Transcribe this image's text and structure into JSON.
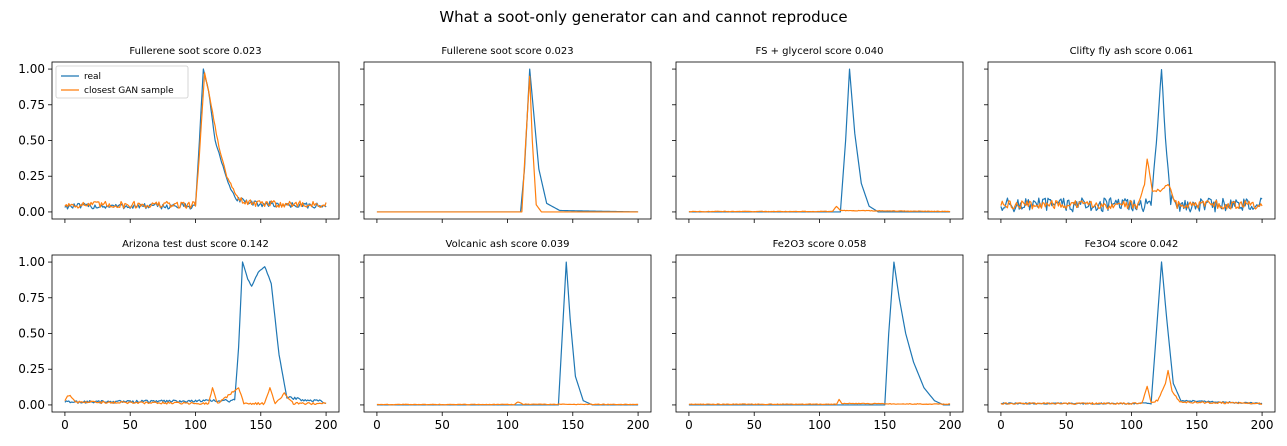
{
  "figure_title": "What a soot-only generator can and cannot reproduce",
  "legend": {
    "real": "real",
    "gan": "closest GAN sample"
  },
  "colors": {
    "real": "#1f77b4",
    "gan": "#ff7f0e"
  },
  "chart_data": [
    {
      "type": "line",
      "title": "Fullerene soot  score 0.023",
      "xlim": [
        0,
        200
      ],
      "ylim": [
        0,
        1
      ],
      "x_ticks": [
        0,
        50,
        100,
        150,
        200
      ],
      "y_ticks": [
        0.0,
        0.25,
        0.5,
        0.75,
        1.0
      ],
      "x_tick_labels_visible": false,
      "y_tick_labels_visible": true,
      "legend_visible": true,
      "series": [
        {
          "name": "real",
          "noise": 0.04,
          "floor": 0.04,
          "shape": [
            [
              0,
              0.04
            ],
            [
              100,
              0.04
            ],
            [
              103,
              0.5
            ],
            [
              106,
              1.0
            ],
            [
              110,
              0.85
            ],
            [
              115,
              0.5
            ],
            [
              120,
              0.35
            ],
            [
              125,
              0.2
            ],
            [
              130,
              0.1
            ],
            [
              140,
              0.06
            ],
            [
              200,
              0.04
            ]
          ]
        },
        {
          "name": "closest GAN sample",
          "noise": 0.05,
          "floor": 0.05,
          "shape": [
            [
              0,
              0.05
            ],
            [
              100,
              0.05
            ],
            [
              103,
              0.4
            ],
            [
              107,
              0.98
            ],
            [
              112,
              0.75
            ],
            [
              118,
              0.45
            ],
            [
              124,
              0.25
            ],
            [
              132,
              0.1
            ],
            [
              140,
              0.06
            ],
            [
              200,
              0.05
            ]
          ]
        }
      ]
    },
    {
      "type": "line",
      "title": "Fullerene soot  score 0.023",
      "xlim": [
        0,
        200
      ],
      "ylim": [
        0,
        1
      ],
      "x_ticks": [
        0,
        50,
        100,
        150,
        200
      ],
      "y_ticks": [
        0.0,
        0.25,
        0.5,
        0.75,
        1.0
      ],
      "x_tick_labels_visible": false,
      "y_tick_labels_visible": false,
      "legend_visible": false,
      "series": [
        {
          "name": "real",
          "noise": 0,
          "floor": 0.0,
          "shape": [
            [
              0,
              0
            ],
            [
              110,
              0
            ],
            [
              113,
              0.3
            ],
            [
              117,
              1.0
            ],
            [
              120,
              0.7
            ],
            [
              124,
              0.3
            ],
            [
              130,
              0.06
            ],
            [
              140,
              0.01
            ],
            [
              200,
              0
            ]
          ]
        },
        {
          "name": "closest GAN sample",
          "noise": 0,
          "floor": 0.0,
          "shape": [
            [
              0,
              0
            ],
            [
              111,
              0
            ],
            [
              114,
              0.5
            ],
            [
              117,
              0.95
            ],
            [
              119,
              0.5
            ],
            [
              122,
              0.05
            ],
            [
              126,
              0
            ],
            [
              200,
              0
            ]
          ]
        }
      ]
    },
    {
      "type": "line",
      "title": "FS + glycerol  score 0.040",
      "xlim": [
        0,
        200
      ],
      "ylim": [
        0,
        1
      ],
      "x_ticks": [
        0,
        50,
        100,
        150,
        200
      ],
      "y_ticks": [
        0.0,
        0.25,
        0.5,
        0.75,
        1.0
      ],
      "x_tick_labels_visible": false,
      "y_tick_labels_visible": false,
      "legend_visible": false,
      "series": [
        {
          "name": "real",
          "noise": 0,
          "floor": 0.0,
          "shape": [
            [
              0,
              0
            ],
            [
              116,
              0
            ],
            [
              120,
              0.5
            ],
            [
              123,
              1.0
            ],
            [
              127,
              0.55
            ],
            [
              132,
              0.2
            ],
            [
              138,
              0.04
            ],
            [
              145,
              0
            ],
            [
              200,
              0
            ]
          ]
        },
        {
          "name": "closest GAN sample",
          "noise": 0.004,
          "floor": 0.003,
          "shape": [
            [
              0,
              0.003
            ],
            [
              110,
              0.003
            ],
            [
              113,
              0.04
            ],
            [
              116,
              0.01
            ],
            [
              200,
              0.003
            ]
          ]
        }
      ]
    },
    {
      "type": "line",
      "title": "Clifty fly ash  score 0.061",
      "xlim": [
        0,
        200
      ],
      "ylim": [
        0,
        1
      ],
      "x_ticks": [
        0,
        50,
        100,
        150,
        200
      ],
      "y_ticks": [
        0.0,
        0.25,
        0.5,
        0.75,
        1.0
      ],
      "x_tick_labels_visible": false,
      "y_tick_labels_visible": false,
      "legend_visible": false,
      "series": [
        {
          "name": "real",
          "noise": 0.1,
          "floor": 0.05,
          "shape": [
            [
              0,
              0.05
            ],
            [
              115,
              0.05
            ],
            [
              120,
              0.6
            ],
            [
              123,
              1.0
            ],
            [
              126,
              0.5
            ],
            [
              130,
              0.1
            ],
            [
              135,
              0.05
            ],
            [
              200,
              0.05
            ]
          ]
        },
        {
          "name": "closest GAN sample",
          "noise": 0.06,
          "floor": 0.05,
          "shape": [
            [
              0,
              0.05
            ],
            [
              105,
              0.05
            ],
            [
              110,
              0.2
            ],
            [
              112,
              0.37
            ],
            [
              116,
              0.15
            ],
            [
              122,
              0.15
            ],
            [
              128,
              0.2
            ],
            [
              135,
              0.05
            ],
            [
              200,
              0.05
            ]
          ]
        }
      ]
    },
    {
      "type": "line",
      "title": "Arizona test dust  score 0.142",
      "xlim": [
        0,
        200
      ],
      "ylim": [
        0,
        1
      ],
      "x_ticks": [
        0,
        50,
        100,
        150,
        200
      ],
      "y_ticks": [
        0.0,
        0.25,
        0.5,
        0.75,
        1.0
      ],
      "x_tick_labels_visible": true,
      "y_tick_labels_visible": true,
      "legend_visible": false,
      "series": [
        {
          "name": "real",
          "noise": 0.02,
          "floor": 0.02,
          "shape": [
            [
              0,
              0.02
            ],
            [
              130,
              0.03
            ],
            [
              133,
              0.4
            ],
            [
              136,
              1.0
            ],
            [
              140,
              0.88
            ],
            [
              143,
              0.83
            ],
            [
              148,
              0.93
            ],
            [
              153,
              0.97
            ],
            [
              158,
              0.85
            ],
            [
              164,
              0.35
            ],
            [
              170,
              0.05
            ],
            [
              200,
              0.02
            ]
          ]
        },
        {
          "name": "closest GAN sample",
          "noise": 0.015,
          "floor": 0.01,
          "shape": [
            [
              0,
              0.03
            ],
            [
              3,
              0.07
            ],
            [
              8,
              0.02
            ],
            [
              110,
              0.01
            ],
            [
              113,
              0.12
            ],
            [
              117,
              0.01
            ],
            [
              133,
              0.12
            ],
            [
              137,
              0.01
            ],
            [
              153,
              0.01
            ],
            [
              157,
              0.12
            ],
            [
              161,
              0.01
            ],
            [
              168,
              0.08
            ],
            [
              175,
              0.01
            ],
            [
              200,
              0.01
            ]
          ]
        }
      ]
    },
    {
      "type": "line",
      "title": "Volcanic ash  score 0.039",
      "xlim": [
        0,
        200
      ],
      "ylim": [
        0,
        1
      ],
      "x_ticks": [
        0,
        50,
        100,
        150,
        200
      ],
      "y_ticks": [
        0.0,
        0.25,
        0.5,
        0.75,
        1.0
      ],
      "x_tick_labels_visible": true,
      "y_tick_labels_visible": false,
      "legend_visible": false,
      "series": [
        {
          "name": "real",
          "noise": 0,
          "floor": 0.0,
          "shape": [
            [
              0,
              0
            ],
            [
              139,
              0
            ],
            [
              142,
              0.5
            ],
            [
              145,
              1.0
            ],
            [
              148,
              0.6
            ],
            [
              152,
              0.2
            ],
            [
              158,
              0.03
            ],
            [
              165,
              0
            ],
            [
              200,
              0
            ]
          ]
        },
        {
          "name": "closest GAN sample",
          "noise": 0.004,
          "floor": 0.003,
          "shape": [
            [
              0,
              0.003
            ],
            [
              105,
              0.003
            ],
            [
              108,
              0.02
            ],
            [
              112,
              0.005
            ],
            [
              200,
              0.003
            ]
          ]
        }
      ]
    },
    {
      "type": "line",
      "title": "Fe2O3  score 0.058",
      "xlim": [
        0,
        200
      ],
      "ylim": [
        0,
        1
      ],
      "x_ticks": [
        0,
        50,
        100,
        150,
        200
      ],
      "y_ticks": [
        0.0,
        0.25,
        0.5,
        0.75,
        1.0
      ],
      "x_tick_labels_visible": true,
      "y_tick_labels_visible": false,
      "legend_visible": false,
      "series": [
        {
          "name": "real",
          "noise": 0,
          "floor": 0.0,
          "shape": [
            [
              0,
              0
            ],
            [
              150,
              0
            ],
            [
              153,
              0.5
            ],
            [
              157,
              1.0
            ],
            [
              161,
              0.75
            ],
            [
              166,
              0.5
            ],
            [
              172,
              0.3
            ],
            [
              180,
              0.12
            ],
            [
              188,
              0.03
            ],
            [
              195,
              0
            ],
            [
              200,
              0
            ]
          ]
        },
        {
          "name": "closest GAN sample",
          "noise": 0.005,
          "floor": 0.005,
          "shape": [
            [
              0,
              0.005
            ],
            [
              113,
              0.005
            ],
            [
              115,
              0.04
            ],
            [
              117,
              0.01
            ],
            [
              200,
              0.005
            ]
          ]
        }
      ]
    },
    {
      "type": "line",
      "title": "Fe3O4  score 0.042",
      "xlim": [
        0,
        200
      ],
      "ylim": [
        0,
        1
      ],
      "x_ticks": [
        0,
        50,
        100,
        150,
        200
      ],
      "y_ticks": [
        0.0,
        0.25,
        0.5,
        0.75,
        1.0
      ],
      "x_tick_labels_visible": true,
      "y_tick_labels_visible": false,
      "legend_visible": false,
      "series": [
        {
          "name": "real",
          "noise": 0.01,
          "floor": 0.01,
          "shape": [
            [
              0,
              0.01
            ],
            [
              115,
              0.01
            ],
            [
              119,
              0.5
            ],
            [
              123,
              1.0
            ],
            [
              127,
              0.6
            ],
            [
              132,
              0.15
            ],
            [
              138,
              0.03
            ],
            [
              200,
              0.01
            ]
          ]
        },
        {
          "name": "closest GAN sample",
          "noise": 0.012,
          "floor": 0.01,
          "shape": [
            [
              0,
              0.01
            ],
            [
              108,
              0.01
            ],
            [
              112,
              0.13
            ],
            [
              115,
              0.02
            ],
            [
              120,
              0.03
            ],
            [
              126,
              0.15
            ],
            [
              128,
              0.24
            ],
            [
              131,
              0.1
            ],
            [
              137,
              0.02
            ],
            [
              200,
              0.01
            ]
          ]
        }
      ]
    }
  ]
}
